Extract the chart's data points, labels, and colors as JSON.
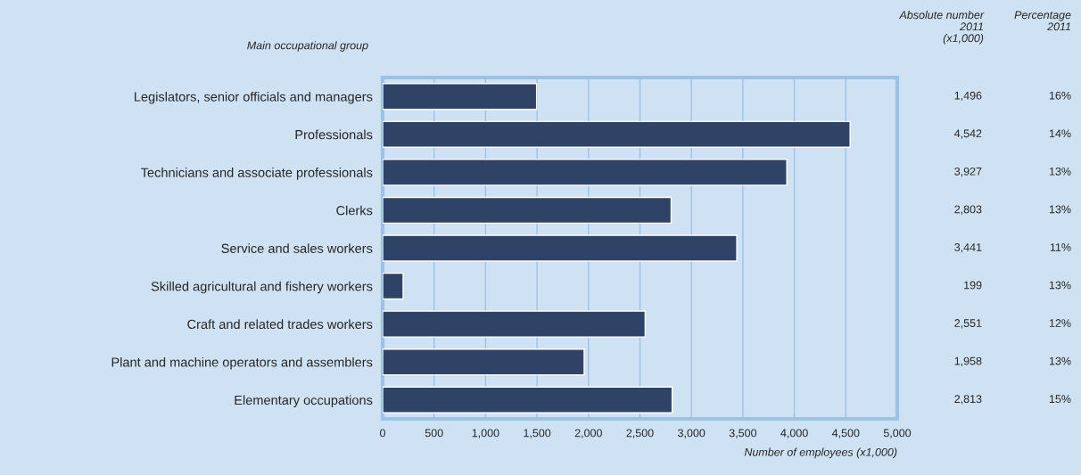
{
  "chart_data": {
    "type": "bar",
    "orientation": "horizontal",
    "ylabel": "Main occupational group",
    "xlabel": "Number of employees (x1,000)",
    "categories": [
      "Legislators, senior officials and managers",
      "Professionals",
      "Technicians and associate professionals",
      "Clerks",
      "Service and sales workers",
      "Skilled agricultural and fishery workers",
      "Craft and related trades workers",
      "Plant and machine operators and assemblers",
      "Elementary occupations"
    ],
    "values": [
      1496,
      4542,
      3927,
      2803,
      3441,
      199,
      2551,
      1958,
      2813
    ],
    "value_labels": [
      "1,496",
      "4,542",
      "3,927",
      "2,803",
      "3,441",
      "199",
      "2,551",
      "1,958",
      "2,813"
    ],
    "color": "#2e4366",
    "xlim": [
      0,
      5000
    ],
    "xticks": [
      0,
      500,
      {
        "value": 1000,
        "label": "1,000"
      },
      {
        "value": 1500,
        "label": "1,500"
      },
      {
        "value": 2000,
        "label": "2,000"
      },
      {
        "value": 2500,
        "label": "2,500"
      },
      {
        "value": 3000,
        "label": "3,000"
      },
      {
        "value": 3500,
        "label": "3,500"
      },
      {
        "value": 4000,
        "label": "4,000"
      },
      {
        "value": 4500,
        "label": "4,500"
      },
      {
        "value": 5000,
        "label": "5,000"
      }
    ],
    "grid": "x",
    "legend": false,
    "annotations": [
      "Absolute number\n2011\n(x1,000)",
      "Percentage\n2011",
      "16%",
      "14%",
      "13%",
      "13%",
      "11%",
      "13%",
      "12%",
      "13%",
      "15%"
    ]
  }
}
